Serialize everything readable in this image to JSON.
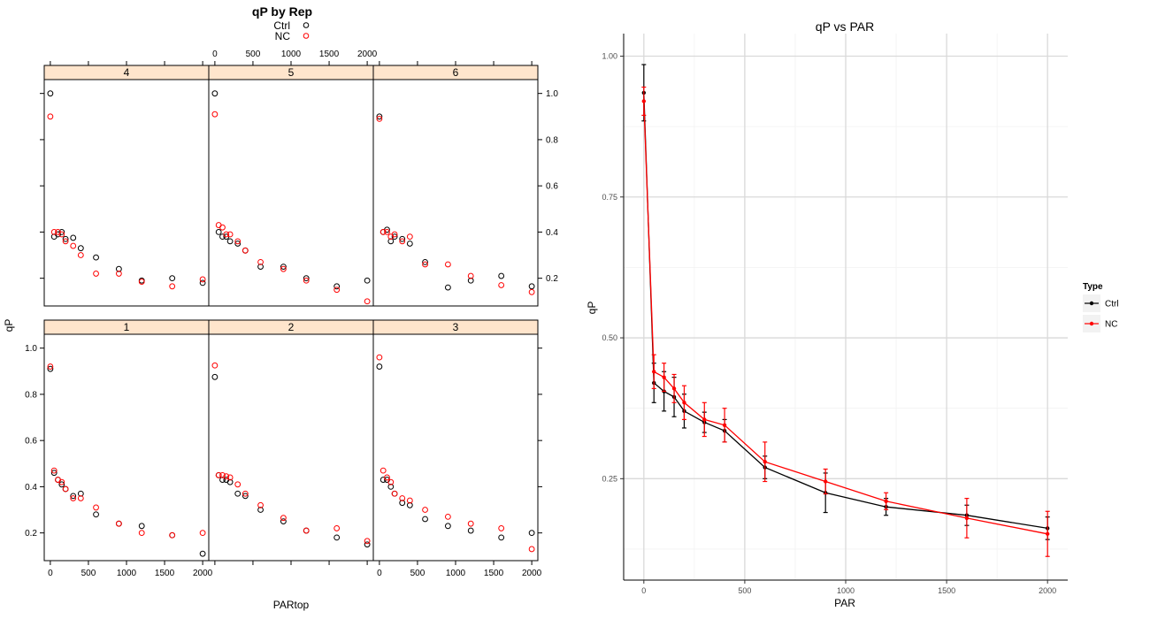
{
  "chart_data": [
    {
      "type": "scatter",
      "title": "qP by Rep",
      "xlabel": "PARtop",
      "ylabel": "qP",
      "xlim": [
        -80,
        2080
      ],
      "ylim": [
        0.08,
        1.06
      ],
      "x_ticks": [
        0,
        500,
        1000,
        1500,
        2000
      ],
      "y_ticks": [
        0.2,
        0.4,
        0.6,
        0.8,
        1.0
      ],
      "y_tick_labels": [
        "0.2",
        "0.4",
        "0.6",
        "0.8",
        "1.0"
      ],
      "legend": [
        {
          "name": "Ctrl",
          "color": "#000000"
        },
        {
          "name": "NC",
          "color": "#ff0000"
        }
      ],
      "panels": [
        {
          "label": "4",
          "Ctrl": {
            "x": [
              0,
              50,
              100,
              150,
              200,
              300,
              400,
              600,
              900,
              1200,
              1600,
              2000
            ],
            "y": [
              1.0,
              0.38,
              0.39,
              0.4,
              0.37,
              0.375,
              0.33,
              0.29,
              0.24,
              0.19,
              0.2,
              0.18
            ]
          },
          "NC": {
            "x": [
              0,
              50,
              100,
              150,
              200,
              300,
              400,
              600,
              900,
              1200,
              1600,
              2000
            ],
            "y": [
              0.9,
              0.4,
              0.4,
              0.39,
              0.36,
              0.34,
              0.3,
              0.22,
              0.22,
              0.185,
              0.165,
              0.195
            ]
          }
        },
        {
          "label": "5",
          "Ctrl": {
            "x": [
              0,
              50,
              100,
              150,
              200,
              300,
              400,
              600,
              900,
              1200,
              1600,
              2000
            ],
            "y": [
              1.0,
              0.4,
              0.38,
              0.38,
              0.36,
              0.35,
              0.32,
              0.25,
              0.25,
              0.2,
              0.165,
              0.19
            ]
          },
          "NC": {
            "x": [
              0,
              50,
              100,
              150,
              200,
              300,
              400,
              600,
              900,
              1200,
              1600,
              2000
            ],
            "y": [
              0.91,
              0.43,
              0.42,
              0.39,
              0.39,
              0.36,
              0.32,
              0.27,
              0.24,
              0.19,
              0.15,
              0.1
            ]
          }
        },
        {
          "label": "6",
          "Ctrl": {
            "x": [
              0,
              50,
              100,
              150,
              200,
              300,
              400,
              600,
              900,
              1200,
              1600,
              2000
            ],
            "y": [
              0.9,
              0.4,
              0.41,
              0.36,
              0.38,
              0.37,
              0.35,
              0.27,
              0.16,
              0.19,
              0.21,
              0.165
            ]
          },
          "NC": {
            "x": [
              0,
              50,
              100,
              150,
              200,
              300,
              400,
              600,
              900,
              1200,
              1600,
              2000
            ],
            "y": [
              0.89,
              0.4,
              0.4,
              0.38,
              0.39,
              0.36,
              0.38,
              0.26,
              0.26,
              0.21,
              0.17,
              0.14
            ]
          }
        },
        {
          "label": "1",
          "Ctrl": {
            "x": [
              0,
              50,
              100,
              150,
              200,
              300,
              400,
              600,
              900,
              1200,
              1600,
              2000
            ],
            "y": [
              0.91,
              0.46,
              0.43,
              0.41,
              0.39,
              0.36,
              0.37,
              0.28,
              0.24,
              0.23,
              0.19,
              0.11
            ]
          },
          "NC": {
            "x": [
              0,
              50,
              100,
              150,
              200,
              300,
              400,
              600,
              900,
              1200,
              1600,
              2000
            ],
            "y": [
              0.92,
              0.47,
              0.43,
              0.42,
              0.39,
              0.35,
              0.35,
              0.31,
              0.24,
              0.2,
              0.19,
              0.2
            ]
          }
        },
        {
          "label": "2",
          "Ctrl": {
            "x": [
              0,
              50,
              100,
              150,
              200,
              300,
              400,
              600,
              900,
              1200,
              1600,
              2000
            ],
            "y": [
              0.875,
              0.45,
              0.43,
              0.43,
              0.42,
              0.37,
              0.36,
              0.3,
              0.25,
              0.21,
              0.18,
              0.15
            ]
          },
          "NC": {
            "x": [
              0,
              50,
              100,
              150,
              200,
              300,
              400,
              600,
              900,
              1200,
              1600,
              2000
            ],
            "y": [
              0.925,
              0.45,
              0.45,
              0.445,
              0.44,
              0.41,
              0.37,
              0.32,
              0.265,
              0.21,
              0.22,
              0.165
            ]
          }
        },
        {
          "label": "3",
          "Ctrl": {
            "x": [
              0,
              50,
              100,
              150,
              200,
              300,
              400,
              600,
              900,
              1200,
              1600,
              2000
            ],
            "y": [
              0.92,
              0.43,
              0.43,
              0.4,
              0.37,
              0.33,
              0.32,
              0.26,
              0.23,
              0.21,
              0.18,
              0.2
            ]
          },
          "NC": {
            "x": [
              0,
              50,
              100,
              150,
              200,
              300,
              400,
              600,
              900,
              1200,
              1600,
              2000
            ],
            "y": [
              0.96,
              0.47,
              0.44,
              0.42,
              0.37,
              0.35,
              0.34,
              0.3,
              0.27,
              0.24,
              0.22,
              0.13
            ]
          }
        }
      ]
    },
    {
      "type": "line",
      "title": "qP vs PAR",
      "xlabel": "PAR",
      "ylabel": "qP",
      "xlim": [
        -100,
        2100
      ],
      "ylim": [
        0.07,
        1.04
      ],
      "x_ticks": [
        0,
        500,
        1000,
        1500,
        2000
      ],
      "y_ticks": [
        0.25,
        0.5,
        0.75,
        1.0
      ],
      "y_tick_labels": [
        "0.25",
        "0.50",
        "0.75",
        "1.00"
      ],
      "grid": true,
      "legend_title": "Type",
      "legend_position": "right",
      "x": [
        0,
        50,
        100,
        150,
        200,
        300,
        400,
        600,
        900,
        1200,
        1600,
        2000
      ],
      "series": [
        {
          "name": "Ctrl",
          "color": "#000000",
          "values": [
            0.935,
            0.42,
            0.405,
            0.395,
            0.37,
            0.35,
            0.335,
            0.27,
            0.225,
            0.2,
            0.185,
            0.162
          ],
          "err": [
            0.05,
            0.035,
            0.035,
            0.035,
            0.03,
            0.018,
            0.02,
            0.02,
            0.035,
            0.015,
            0.018,
            0.02
          ]
        },
        {
          "name": "NC",
          "color": "#ff0000",
          "values": [
            0.92,
            0.44,
            0.43,
            0.41,
            0.385,
            0.355,
            0.345,
            0.28,
            0.245,
            0.21,
            0.18,
            0.152
          ],
          "err": [
            0.025,
            0.03,
            0.025,
            0.025,
            0.03,
            0.03,
            0.03,
            0.035,
            0.022,
            0.015,
            0.035,
            0.04
          ]
        }
      ]
    }
  ]
}
